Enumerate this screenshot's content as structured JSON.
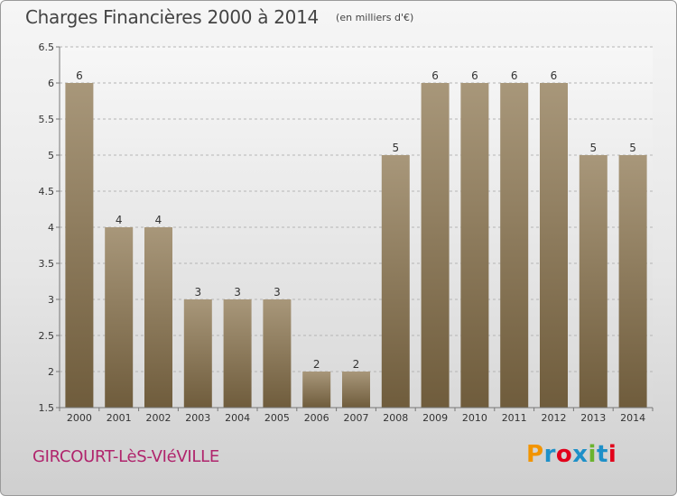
{
  "header": {
    "title": "Charges Financières 2000 à 2014",
    "unit": "(en milliers d'€)"
  },
  "footer": {
    "commune": "GIRCOURT-LèS-VIéVILLE",
    "brand": "Proxiti"
  },
  "colors": {
    "bar_top": "#a8977a",
    "bar_bottom": "#6f5c3c",
    "commune_text": "#b0246c",
    "brand_letters": [
      "#f29400",
      "#1e90c8",
      "#e2001a",
      "#1e90c8",
      "#6bb32e",
      "#1e90c8",
      "#e2001a"
    ]
  },
  "chart_data": {
    "type": "bar",
    "title": "Charges Financières 2000 à 2014",
    "unit": "(en milliers d'€)",
    "categories": [
      "2000",
      "2001",
      "2002",
      "2003",
      "2004",
      "2005",
      "2006",
      "2007",
      "2008",
      "2009",
      "2010",
      "2011",
      "2012",
      "2013",
      "2014"
    ],
    "values": [
      6,
      4,
      4,
      3,
      3,
      3,
      2,
      2,
      5,
      6,
      6,
      6,
      6,
      5,
      5
    ],
    "data_labels": [
      "6",
      "4",
      "4",
      "3",
      "3",
      "3",
      "2",
      "2",
      "5",
      "6",
      "6",
      "6",
      "6",
      "5",
      "5"
    ],
    "ylim": [
      1.5,
      6.5
    ],
    "yticks": [
      1.5,
      2,
      2.5,
      3,
      3.5,
      4,
      4.5,
      5,
      5.5,
      6,
      6.5
    ],
    "ytick_labels": [
      "1.5",
      "2",
      "2.5",
      "3",
      "3.5",
      "4",
      "4.5",
      "5",
      "5.5",
      "6",
      "6.5"
    ],
    "grid": "horizontal dashed",
    "legend": "none"
  }
}
